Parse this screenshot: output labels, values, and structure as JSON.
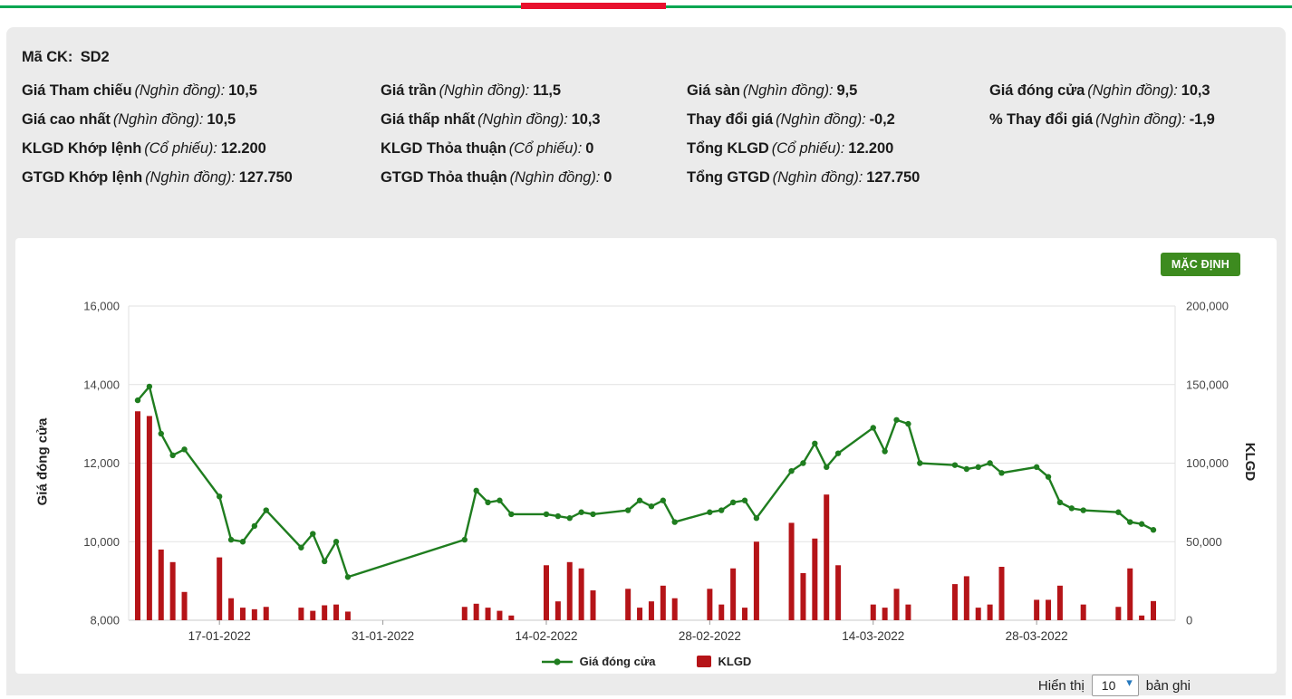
{
  "decor": {
    "top_line_green": "#00a651",
    "top_line_red": "#e8112d"
  },
  "info": {
    "stock_code_label": "Mã CK:",
    "stock_code_value": "SD2",
    "cells": [
      {
        "label": "Giá Tham chiếu",
        "unit": "(Nghìn đồng):",
        "value": "10,5"
      },
      {
        "label": "Giá trần",
        "unit": "(Nghìn đồng):",
        "value": "11,5"
      },
      {
        "label": "Giá sàn",
        "unit": "(Nghìn đồng):",
        "value": "9,5"
      },
      {
        "label": "Giá đóng cửa",
        "unit": "(Nghìn đồng):",
        "value": "10,3"
      },
      {
        "label": "Giá cao nhất",
        "unit": "(Nghìn đồng):",
        "value": "10,5"
      },
      {
        "label": "Giá thấp nhất",
        "unit": "(Nghìn đồng):",
        "value": "10,3"
      },
      {
        "label": "Thay đổi giá",
        "unit": "(Nghìn đồng):",
        "value": "-0,2"
      },
      {
        "label": "% Thay đổi giá",
        "unit": "(Nghìn đồng):",
        "value": "-1,9"
      },
      {
        "label": "KLGD Khớp lệnh",
        "unit": "(Cổ phiếu):",
        "value": "12.200"
      },
      {
        "label": "KLGD Thỏa thuận",
        "unit": "(Cổ phiếu):",
        "value": "0"
      },
      {
        "label": "Tổng KLGD",
        "unit": "(Cổ phiếu):",
        "value": "12.200"
      },
      {
        "label": "GTGD Khớp lệnh",
        "unit": "(Nghìn đồng):",
        "value": "127.750"
      },
      {
        "label": "GTGD Thỏa thuận",
        "unit": "(Nghìn đồng):",
        "value": "0"
      },
      {
        "label": "Tổng GTGD",
        "unit": "(Nghìn đồng):",
        "value": "127.750"
      }
    ]
  },
  "chart": {
    "default_button_label": "MẶC ĐỊNH"
  },
  "chart_data": {
    "type": "line",
    "title": "",
    "x": [
      "10-01-2022",
      "11-01-2022",
      "12-01-2022",
      "13-01-2022",
      "14-01-2022",
      "17-01-2022",
      "18-01-2022",
      "19-01-2022",
      "20-01-2022",
      "21-01-2022",
      "24-01-2022",
      "25-01-2022",
      "26-01-2022",
      "27-01-2022",
      "28-01-2022",
      "07-02-2022",
      "08-02-2022",
      "09-02-2022",
      "10-02-2022",
      "11-02-2022",
      "14-02-2022",
      "15-02-2022",
      "16-02-2022",
      "17-02-2022",
      "18-02-2022",
      "21-02-2022",
      "22-02-2022",
      "23-02-2022",
      "24-02-2022",
      "25-02-2022",
      "28-02-2022",
      "01-03-2022",
      "02-03-2022",
      "03-03-2022",
      "04-03-2022",
      "07-03-2022",
      "08-03-2022",
      "09-03-2022",
      "10-03-2022",
      "11-03-2022",
      "14-03-2022",
      "15-03-2022",
      "16-03-2022",
      "17-03-2022",
      "18-03-2022",
      "21-03-2022",
      "22-03-2022",
      "23-03-2022",
      "24-03-2022",
      "25-03-2022",
      "28-03-2022",
      "29-03-2022",
      "30-03-2022",
      "31-03-2022",
      "01-04-2022",
      "04-04-2022",
      "05-04-2022",
      "06-04-2022",
      "07-04-2022"
    ],
    "series": [
      {
        "name": "Giá đóng cửa",
        "type": "line",
        "axis": "left",
        "color": "#1f7d1f",
        "values": [
          13600,
          13950,
          12750,
          12200,
          12350,
          11150,
          10050,
          10000,
          10400,
          10800,
          9850,
          10200,
          9500,
          10000,
          9100,
          10050,
          11300,
          11000,
          11050,
          10700,
          10700,
          10650,
          10600,
          10750,
          10700,
          10800,
          11050,
          10900,
          11050,
          10500,
          10750,
          10800,
          11000,
          11050,
          10600,
          11800,
          12000,
          12500,
          11900,
          12250,
          12900,
          12300,
          13100,
          13000,
          12000,
          11950,
          11850,
          11900,
          12000,
          11750,
          11900,
          11650,
          11000,
          10850,
          10800,
          10750,
          10500,
          10450,
          10300
        ]
      },
      {
        "name": "KLGD",
        "type": "bar",
        "axis": "right",
        "color": "#b51418",
        "values": [
          133000,
          130000,
          45000,
          37000,
          18000,
          40000,
          14000,
          8000,
          7000,
          8500,
          8000,
          6000,
          9500,
          10000,
          5500,
          8500,
          10500,
          8000,
          6000,
          3000,
          35000,
          12000,
          37000,
          33000,
          19000,
          20000,
          8000,
          12000,
          22000,
          14000,
          20000,
          10000,
          33000,
          8000,
          50000,
          62000,
          30000,
          52000,
          80000,
          35000,
          10000,
          8000,
          20000,
          10000,
          0,
          23000,
          28000,
          8000,
          10000,
          34000,
          13000,
          13000,
          22000,
          0,
          10000,
          8500,
          33000,
          3000,
          12200
        ]
      }
    ],
    "left_axis": {
      "label": "Giá đóng cửa",
      "min": 8000,
      "max": 16000,
      "ticks": [
        "8,000",
        "10,000",
        "12,000",
        "14,000",
        "16,000"
      ]
    },
    "right_axis": {
      "label": "KLGD",
      "min": 0,
      "max": 200000,
      "ticks": [
        "0",
        "50,000",
        "100,000",
        "150,000",
        "200,000"
      ]
    },
    "x_ticks": [
      "17-01-2022",
      "31-01-2022",
      "14-02-2022",
      "28-02-2022",
      "14-03-2022",
      "28-03-2022"
    ],
    "legend": [
      "Giá đóng cửa",
      "KLGD"
    ],
    "legend_position": "bottom",
    "grid": true
  },
  "footer": {
    "show_label": "Hiển thị",
    "page_size": "10",
    "records_label": "bản ghi"
  }
}
